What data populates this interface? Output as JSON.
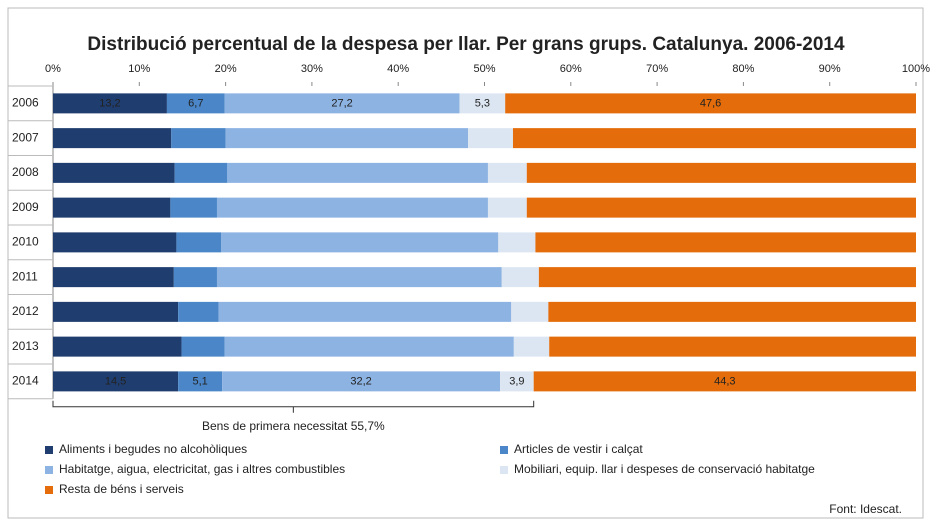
{
  "chart_data": {
    "type": "stacked-barh",
    "title": "Distribució percentual de la despesa per llar. Per grans grups. Catalunya. 2006-2014",
    "categories": [
      "2006",
      "2007",
      "2008",
      "2009",
      "2010",
      "2011",
      "2012",
      "2013",
      "2014"
    ],
    "series": [
      {
        "name": "Aliments i begudes no alcohòliques",
        "color": "#1f3d6e",
        "values": [
          13.2,
          13.7,
          14.1,
          13.6,
          14.3,
          14.0,
          14.5,
          14.9,
          14.5
        ],
        "value_labels": [
          "13,2",
          null,
          null,
          null,
          null,
          null,
          null,
          null,
          "14,5"
        ]
      },
      {
        "name": "Articles de vestir i calçat",
        "color": "#4a86c8",
        "values": [
          6.7,
          6.3,
          6.1,
          5.4,
          5.2,
          5.0,
          4.7,
          5.0,
          5.1
        ],
        "value_labels": [
          "6,7",
          null,
          null,
          null,
          null,
          null,
          null,
          null,
          "5,1"
        ]
      },
      {
        "name": "Habitatge, aigua, electricitat, gas i altres combustibles",
        "color": "#8db3e2",
        "values": [
          27.2,
          28.1,
          30.2,
          31.4,
          32.1,
          33.0,
          33.9,
          33.5,
          32.2
        ],
        "value_labels": [
          "27,2",
          null,
          null,
          null,
          null,
          null,
          null,
          null,
          "32,2"
        ]
      },
      {
        "name": "Mobiliari, equip. llar i despeses de conservació habitatge",
        "color": "#dce6f2",
        "values": [
          5.3,
          5.2,
          4.5,
          4.5,
          4.3,
          4.3,
          4.3,
          4.1,
          3.9
        ],
        "value_labels": [
          "5,3",
          null,
          null,
          null,
          null,
          null,
          null,
          null,
          "3,9"
        ]
      },
      {
        "name": "Resta de béns i serveis",
        "color": "#e46c0a",
        "values": [
          47.6,
          46.7,
          45.1,
          45.1,
          44.1,
          43.7,
          42.6,
          42.5,
          44.3
        ],
        "value_labels": [
          "47,6",
          null,
          null,
          null,
          null,
          null,
          null,
          null,
          "44,3"
        ]
      }
    ],
    "xlim": [
      0,
      100
    ],
    "xticks": [
      {
        "value": 0,
        "label": "0%"
      },
      {
        "value": 10,
        "label": "10%"
      },
      {
        "value": 20,
        "label": "20%"
      },
      {
        "value": 30,
        "label": "30%"
      },
      {
        "value": 40,
        "label": "40%"
      },
      {
        "value": 50,
        "label": "50%"
      },
      {
        "value": 60,
        "label": "60%"
      },
      {
        "value": 70,
        "label": "70%"
      },
      {
        "value": 80,
        "label": "80%"
      },
      {
        "value": 90,
        "label": "90%"
      },
      {
        "value": 100,
        "label": "100%"
      }
    ],
    "annotation": {
      "text": "Bens de primera necessitat 55,7%",
      "value": 55.7
    },
    "source": "Font: Idescat."
  }
}
